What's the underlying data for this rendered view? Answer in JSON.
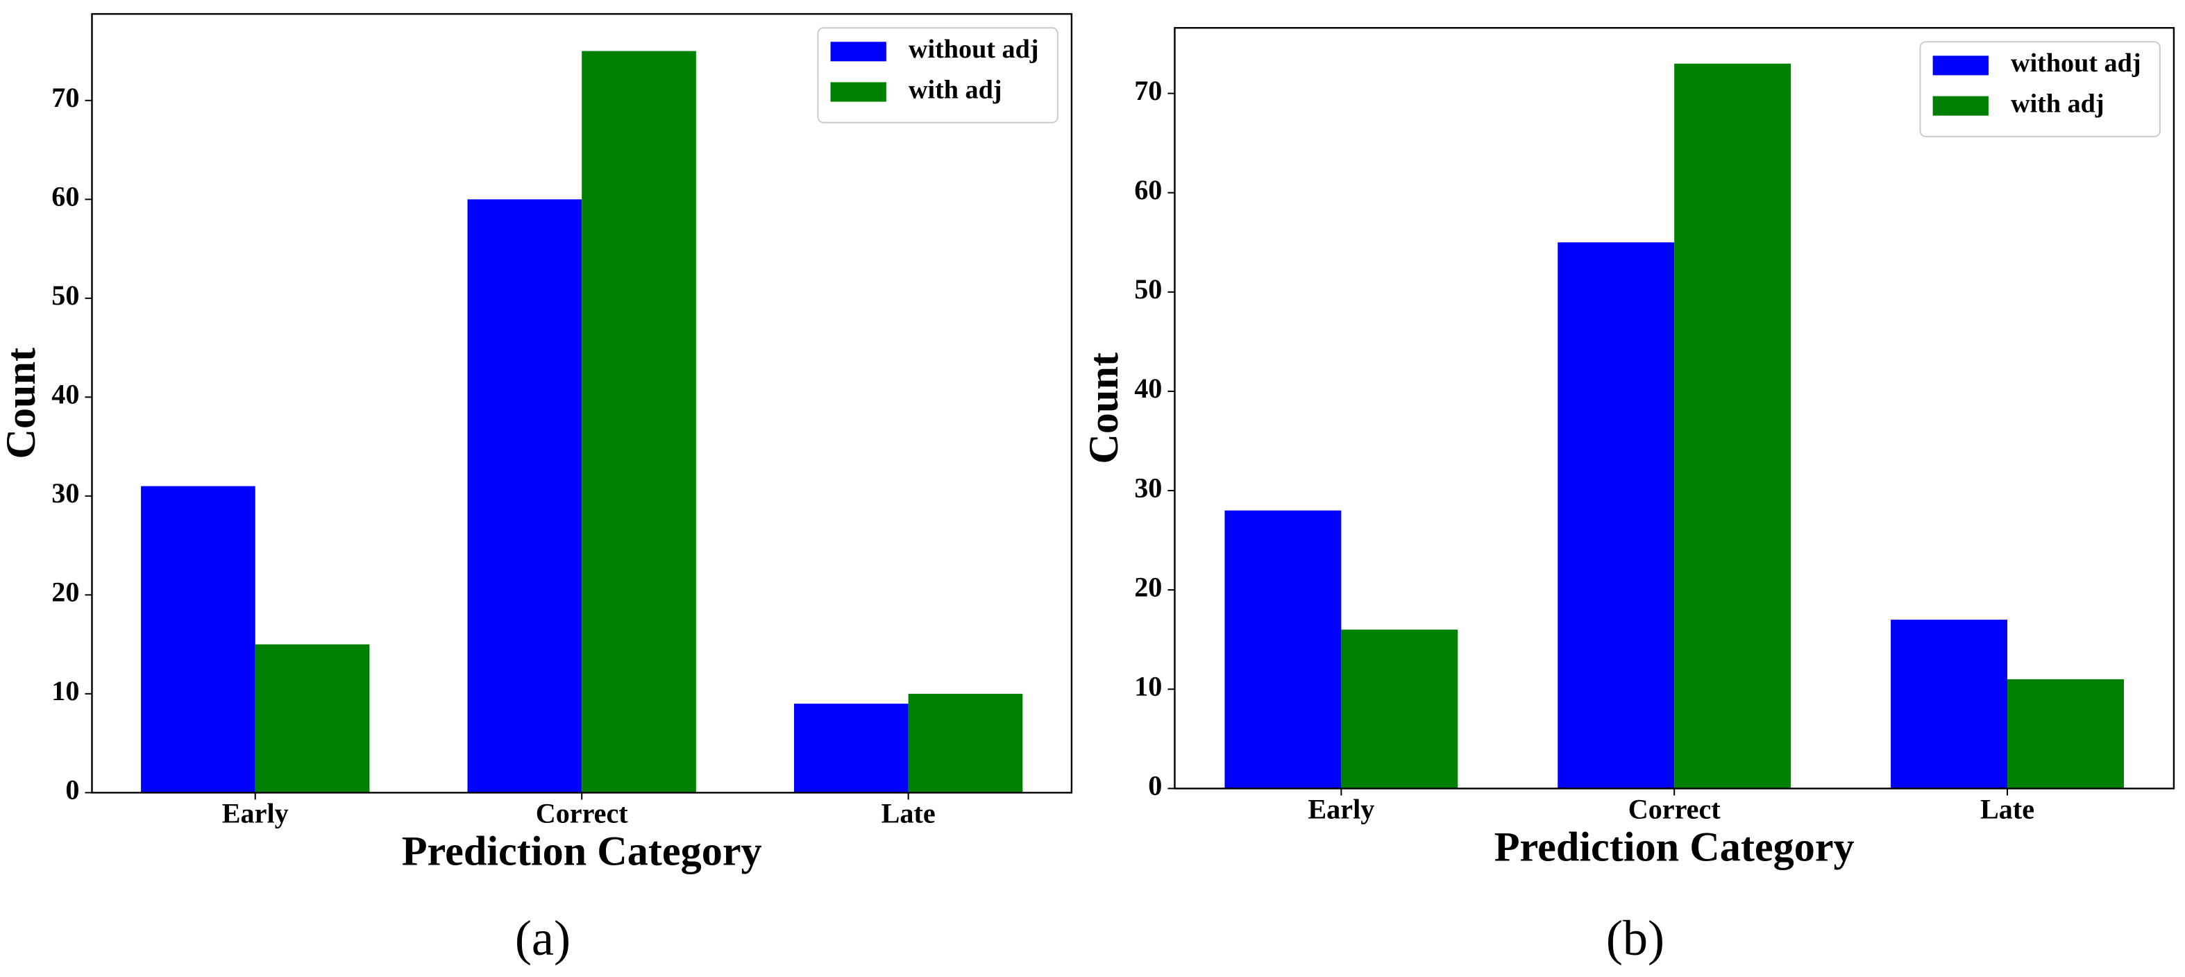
{
  "chart_data": [
    {
      "type": "bar",
      "caption": "(a)",
      "xlabel": "Prediction Category",
      "ylabel": "Count",
      "categories": [
        "Early",
        "Correct",
        "Late"
      ],
      "series": [
        {
          "name": "without adj",
          "color": "#0000ff",
          "values": [
            31,
            60,
            9
          ]
        },
        {
          "name": "with adj",
          "color": "#008000",
          "values": [
            15,
            75,
            10
          ]
        }
      ],
      "ylim": [
        0,
        78.75
      ],
      "yticks": [
        0,
        10,
        20,
        30,
        40,
        50,
        60,
        70
      ],
      "legend": "upper right"
    },
    {
      "type": "bar",
      "caption": "(b)",
      "xlabel": "Prediction Category",
      "ylabel": "Count",
      "categories": [
        "Early",
        "Correct",
        "Late"
      ],
      "series": [
        {
          "name": "without adj",
          "color": "#0000ff",
          "values": [
            28,
            55,
            17
          ]
        },
        {
          "name": "with adj",
          "color": "#008000",
          "values": [
            16,
            73,
            11
          ]
        }
      ],
      "ylim": [
        0,
        76.6
      ],
      "yticks": [
        0,
        10,
        20,
        30,
        40,
        50,
        60,
        70
      ],
      "legend": "upper right"
    }
  ]
}
